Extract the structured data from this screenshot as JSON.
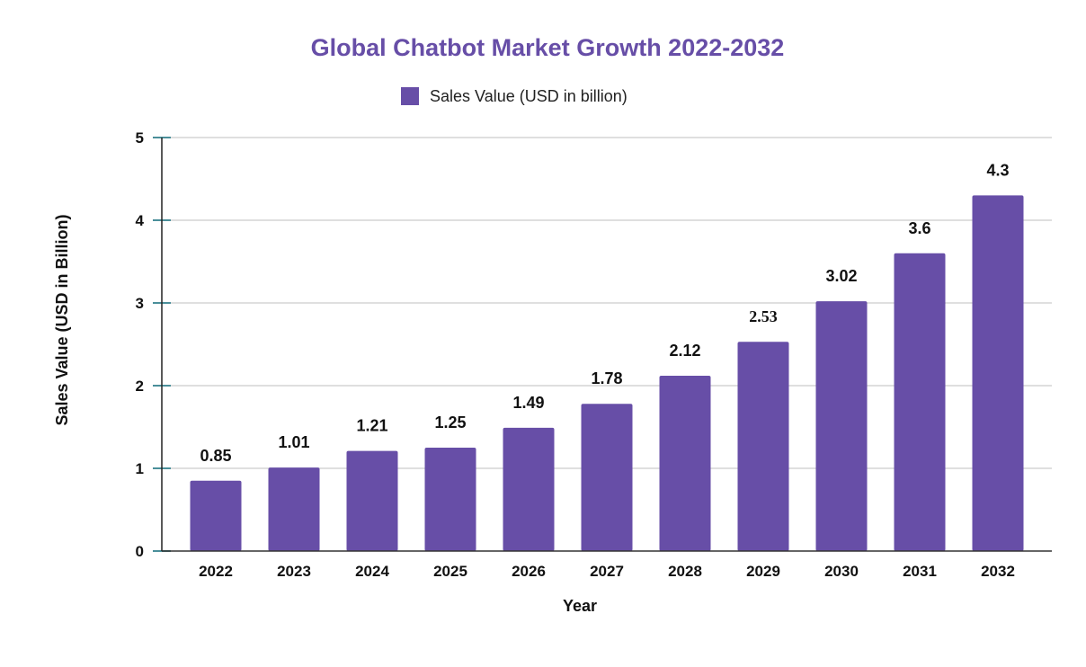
{
  "chart_data": {
    "type": "bar",
    "title": "Global Chatbot Market Growth 2022-2032",
    "xlabel": "Year",
    "ylabel": "Sales Value (USD in Billion)",
    "ylim": [
      0,
      5
    ],
    "yticks": [
      "0",
      "1",
      "2",
      "3",
      "4",
      "5"
    ],
    "grid": true,
    "legend_position": "top",
    "categories": [
      "2022",
      "2023",
      "2024",
      "2025",
      "2026",
      "2027",
      "2028",
      "2029",
      "2030",
      "2031",
      "2032"
    ],
    "series": [
      {
        "name": "Sales Value (USD in billion)",
        "values": [
          0.85,
          1.01,
          1.21,
          1.25,
          1.49,
          1.78,
          2.12,
          2.53,
          3.02,
          3.6,
          4.3
        ],
        "labels": [
          "0.85",
          "1.01",
          "1.21",
          "1.25",
          "1.49",
          "1.78",
          "2.12",
          "2.53",
          "3.02",
          "3.6",
          "4.3"
        ]
      }
    ],
    "colors": {
      "bar": "#674ea7",
      "title": "#674ea7",
      "first_label": "#1f4e5a",
      "axis_tick": "#4a8f9a"
    }
  }
}
